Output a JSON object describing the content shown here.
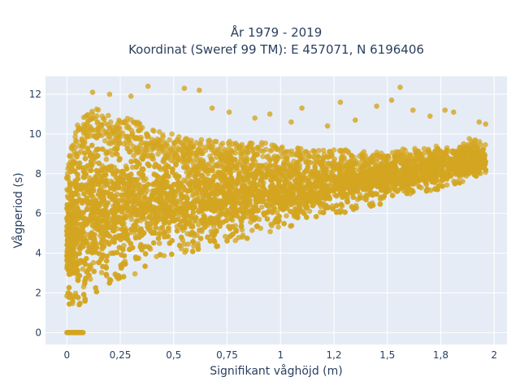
{
  "chart_data": {
    "type": "scatter",
    "title_line1": "År 1979 - 2019",
    "title_line2": "Koordinat (Sweref 99 TM): E 457071, N 6196406",
    "xlabel": "Signifikant våghöjd (m)",
    "ylabel": "Vågperiod (s)",
    "xlim": [
      -0.1,
      2.06
    ],
    "ylim": [
      -0.6,
      12.9
    ],
    "xticks": [
      0,
      0.25,
      0.5,
      0.75,
      1,
      1.25,
      1.5,
      1.75,
      2
    ],
    "xtick_labels": [
      "0",
      "0,25",
      "0,5",
      "0,75",
      "1",
      "1,2",
      "1,5",
      "1,8",
      "2"
    ],
    "yticks": [
      0,
      2,
      4,
      6,
      8,
      10,
      12
    ],
    "ytick_labels": [
      "0",
      "2",
      "4",
      "6",
      "8",
      "10",
      "12"
    ],
    "grid": true,
    "plot_background": "#e5ecf6",
    "marker_color": "#d4a520",
    "series": [
      {
        "envelope": {
          "x": [
            0.0,
            0.05,
            0.1,
            0.15,
            0.2,
            0.3,
            0.4,
            0.5,
            0.6,
            0.7,
            0.8,
            0.9,
            1.0,
            1.1,
            1.2,
            1.3,
            1.4,
            1.5,
            1.6,
            1.7,
            1.8,
            1.9,
            1.95
          ],
          "y_low": [
            1.5,
            1.2,
            1.6,
            2.0,
            2.3,
            2.8,
            3.3,
            3.6,
            4.0,
            4.3,
            4.6,
            4.9,
            5.2,
            5.5,
            5.8,
            6.0,
            6.3,
            6.5,
            6.8,
            7.1,
            7.4,
            7.7,
            7.9
          ],
          "y_high": [
            8.5,
            10.5,
            11.2,
            11.3,
            11.0,
            10.8,
            10.2,
            10.0,
            9.8,
            9.7,
            9.6,
            9.6,
            9.4,
            9.3,
            9.2,
            9.2,
            9.1,
            9.2,
            9.3,
            9.4,
            9.6,
            9.8,
            9.5
          ]
        },
        "zero_cluster": {
          "x_range": [
            0.0,
            0.08
          ],
          "y": 0
        },
        "outliers": [
          {
            "x": 0.38,
            "y": 12.4
          },
          {
            "x": 0.55,
            "y": 12.3
          },
          {
            "x": 0.62,
            "y": 12.2
          },
          {
            "x": 0.12,
            "y": 12.1
          },
          {
            "x": 0.2,
            "y": 12.0
          },
          {
            "x": 0.3,
            "y": 11.9
          },
          {
            "x": 1.56,
            "y": 12.35
          },
          {
            "x": 1.52,
            "y": 11.7
          },
          {
            "x": 1.28,
            "y": 11.6
          },
          {
            "x": 1.45,
            "y": 11.4
          },
          {
            "x": 1.62,
            "y": 11.2
          },
          {
            "x": 1.77,
            "y": 11.2
          },
          {
            "x": 1.81,
            "y": 11.1
          },
          {
            "x": 1.1,
            "y": 11.3
          },
          {
            "x": 1.05,
            "y": 10.6
          },
          {
            "x": 0.95,
            "y": 11.0
          },
          {
            "x": 0.88,
            "y": 10.8
          },
          {
            "x": 0.76,
            "y": 11.1
          },
          {
            "x": 0.68,
            "y": 11.3
          },
          {
            "x": 1.93,
            "y": 10.6
          },
          {
            "x": 1.96,
            "y": 10.5
          },
          {
            "x": 1.7,
            "y": 10.9
          },
          {
            "x": 1.35,
            "y": 10.7
          },
          {
            "x": 1.22,
            "y": 10.4
          }
        ]
      }
    ]
  }
}
